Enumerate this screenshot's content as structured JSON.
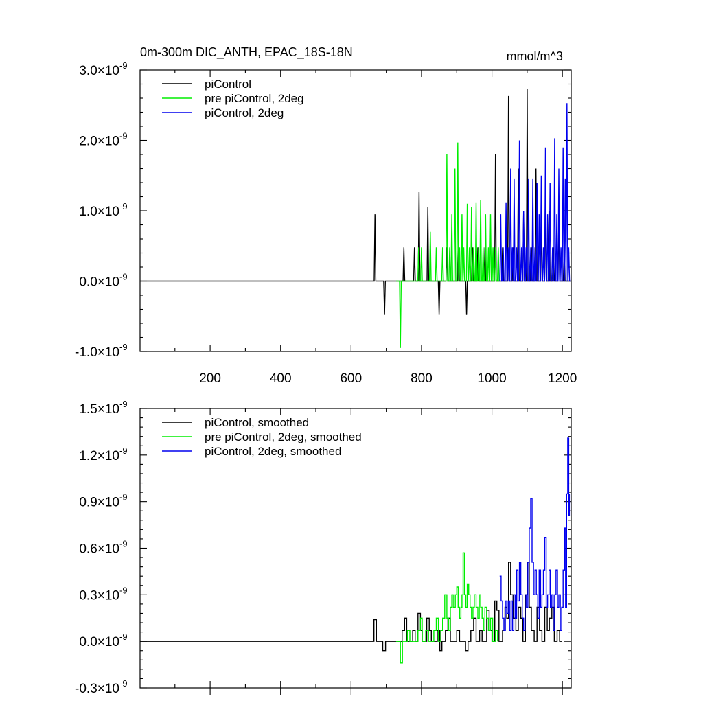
{
  "chart_data": [
    {
      "type": "line",
      "title": "0m-300m DIC_ANTH, EPAC_18S-18N",
      "units": "mmol/m^3",
      "xlabel": "",
      "ylabel": "",
      "xlim": [
        1,
        1225
      ],
      "ylim": [
        -1.0,
        3.0
      ],
      "y_scale_label": "×10⁻⁹",
      "xticks": [
        200,
        400,
        600,
        800,
        1000,
        1200
      ],
      "xtick_labels": [
        "200",
        "400",
        "600",
        "800",
        "1000",
        "1200"
      ],
      "yticks": [
        -1.0,
        0.0,
        1.0,
        2.0,
        3.0
      ],
      "ytick_labels": [
        "-1.0×10",
        "0.0×10",
        "1.0×10",
        "2.0×10",
        "3.0×10"
      ],
      "ytick_exponent": "-9",
      "legend_position": "top-left",
      "series": [
        {
          "name": "piControl",
          "color": "#000000",
          "spikes": [
            [
              668,
              0.95
            ],
            [
              695,
              -0.48
            ],
            [
              750,
              0.48
            ],
            [
              780,
              0.48
            ],
            [
              793,
              1.27
            ],
            [
              818,
              1.05
            ],
            [
              850,
              -0.48
            ],
            [
              872,
              0.48
            ],
            [
              905,
              0.48
            ],
            [
              928,
              -0.48
            ],
            [
              945,
              0.48
            ],
            [
              960,
              0.48
            ],
            [
              980,
              0.48
            ],
            [
              1010,
              1.8
            ],
            [
              1030,
              0.48
            ],
            [
              1047,
              2.63
            ],
            [
              1060,
              0.48
            ],
            [
              1075,
              1.6
            ],
            [
              1090,
              0.95
            ],
            [
              1100,
              2.73
            ],
            [
              1112,
              0.48
            ],
            [
              1125,
              1.6
            ],
            [
              1140,
              0.95
            ],
            [
              1152,
              1.4
            ],
            [
              1162,
              1.0
            ],
            [
              1175,
              0.48
            ],
            [
              1190,
              0.95
            ],
            [
              1205,
              0.48
            ]
          ]
        },
        {
          "name": "pre piControl, 2deg",
          "color": "#00ee00",
          "start": 728,
          "end": 1022,
          "spikes": [
            [
              740,
              -0.95
            ],
            [
              792,
              0.48
            ],
            [
              800,
              0.48
            ],
            [
              825,
              0.7
            ],
            [
              842,
              0.48
            ],
            [
              860,
              0.48
            ],
            [
              872,
              1.8
            ],
            [
              880,
              0.48
            ],
            [
              886,
              0.95
            ],
            [
              895,
              1.6
            ],
            [
              903,
              1.97
            ],
            [
              908,
              0.48
            ],
            [
              915,
              0.95
            ],
            [
              920,
              0.48
            ],
            [
              930,
              1.1
            ],
            [
              936,
              0.48
            ],
            [
              942,
              1.05
            ],
            [
              948,
              0.48
            ],
            [
              955,
              1.12
            ],
            [
              962,
              0.48
            ],
            [
              968,
              1.15
            ],
            [
              975,
              0.48
            ],
            [
              982,
              0.95
            ],
            [
              990,
              0.48
            ],
            [
              996,
              0.95
            ],
            [
              1003,
              0.48
            ],
            [
              1010,
              0.48
            ],
            [
              1018,
              0.48
            ]
          ]
        },
        {
          "name": "piControl, 2deg",
          "color": "#0000ee",
          "start": 1022,
          "end": 1222,
          "spikes": [
            [
              1025,
              0.95
            ],
            [
              1032,
              0.48
            ],
            [
              1040,
              1.12
            ],
            [
              1046,
              0.48
            ],
            [
              1053,
              1.6
            ],
            [
              1058,
              0.48
            ],
            [
              1063,
              1.45
            ],
            [
              1070,
              0.48
            ],
            [
              1078,
              2.0
            ],
            [
              1084,
              0.48
            ],
            [
              1090,
              1.0
            ],
            [
              1097,
              0.48
            ],
            [
              1104,
              1.45
            ],
            [
              1110,
              0.48
            ],
            [
              1116,
              1.45
            ],
            [
              1122,
              0.48
            ],
            [
              1128,
              1.4
            ],
            [
              1134,
              0.95
            ],
            [
              1140,
              1.5
            ],
            [
              1146,
              0.48
            ],
            [
              1152,
              1.9
            ],
            [
              1158,
              0.95
            ],
            [
              1165,
              1.4
            ],
            [
              1172,
              0.48
            ],
            [
              1178,
              2.03
            ],
            [
              1184,
              0.95
            ],
            [
              1190,
              1.6
            ],
            [
              1196,
              0.48
            ],
            [
              1202,
              1.9
            ],
            [
              1208,
              1.45
            ],
            [
              1213,
              2.53
            ],
            [
              1218,
              0.48
            ]
          ]
        }
      ]
    },
    {
      "type": "line",
      "title": "",
      "xlabel": "",
      "ylabel": "",
      "xlim": [
        1,
        1225
      ],
      "ylim": [
        -0.3,
        1.5
      ],
      "y_scale_label": "×10⁻⁹",
      "xticks": [
        200,
        400,
        600,
        800,
        1000,
        1200
      ],
      "yticks": [
        -0.3,
        0.0,
        0.3,
        0.6,
        0.9,
        1.2,
        1.5
      ],
      "ytick_labels": [
        "-0.3×10",
        "0.0×10",
        "0.3×10",
        "0.6×10",
        "0.9×10",
        "1.2×10",
        "1.5×10"
      ],
      "ytick_exponent": "-9",
      "legend_position": "top-left",
      "series": [
        {
          "name": "piControl, smoothed",
          "color": "#000000",
          "steps": [
            [
              1,
              0
            ],
            [
              665,
              0.14
            ],
            [
              672,
              0
            ],
            [
              690,
              -0.06
            ],
            [
              698,
              0
            ],
            [
              745,
              0.07
            ],
            [
              752,
              0.15
            ],
            [
              758,
              0
            ],
            [
              775,
              0.07
            ],
            [
              782,
              0
            ],
            [
              790,
              0.18
            ],
            [
              797,
              0.07
            ],
            [
              802,
              0
            ],
            [
              815,
              0.15
            ],
            [
              822,
              0.07
            ],
            [
              828,
              0
            ],
            [
              845,
              0.07
            ],
            [
              852,
              -0.06
            ],
            [
              858,
              0
            ],
            [
              868,
              0.07
            ],
            [
              875,
              0.15
            ],
            [
              882,
              0
            ],
            [
              900,
              0.07
            ],
            [
              908,
              0
            ],
            [
              925,
              -0.06
            ],
            [
              932,
              0
            ],
            [
              940,
              0.07
            ],
            [
              948,
              0.15
            ],
            [
              955,
              0
            ],
            [
              965,
              0.07
            ],
            [
              972,
              0
            ],
            [
              985,
              0.2
            ],
            [
              992,
              0.07
            ],
            [
              1000,
              0
            ],
            [
              1008,
              0.26
            ],
            [
              1014,
              0.2
            ],
            [
              1020,
              0
            ],
            [
              1030,
              0.07
            ],
            [
              1037,
              0.22
            ],
            [
              1042,
              0.15
            ],
            [
              1047,
              0.51
            ],
            [
              1053,
              0.3
            ],
            [
              1060,
              0.15
            ],
            [
              1068,
              0.07
            ],
            [
              1075,
              0.22
            ],
            [
              1082,
              0.15
            ],
            [
              1088,
              0
            ],
            [
              1095,
              0.3
            ],
            [
              1100,
              0.51
            ],
            [
              1106,
              0.22
            ],
            [
              1112,
              0.07
            ],
            [
              1120,
              0
            ],
            [
              1128,
              0.22
            ],
            [
              1135,
              0.07
            ],
            [
              1142,
              0
            ],
            [
              1150,
              0.22
            ],
            [
              1157,
              0.07
            ],
            [
              1163,
              0.15
            ],
            [
              1170,
              0.22
            ],
            [
              1177,
              0
            ],
            [
              1185,
              0.07
            ],
            [
              1192,
              0
            ],
            [
              1198,
              0
            ]
          ]
        },
        {
          "name": "pre piControl, 2deg, smoothed",
          "color": "#00ee00",
          "steps": [
            [
              728,
              0
            ],
            [
              740,
              -0.14
            ],
            [
              746,
              0
            ],
            [
              760,
              0.07
            ],
            [
              767,
              0
            ],
            [
              790,
              0.07
            ],
            [
              797,
              0.15
            ],
            [
              802,
              0
            ],
            [
              812,
              0.07
            ],
            [
              820,
              0
            ],
            [
              835,
              0.07
            ],
            [
              842,
              0.15
            ],
            [
              848,
              0
            ],
            [
              855,
              0.07
            ],
            [
              860,
              0.15
            ],
            [
              866,
              0.3
            ],
            [
              872,
              0.15
            ],
            [
              877,
              0.07
            ],
            [
              882,
              0.22
            ],
            [
              886,
              0.3
            ],
            [
              890,
              0.22
            ],
            [
              896,
              0.3
            ],
            [
              900,
              0.35
            ],
            [
              904,
              0.22
            ],
            [
              908,
              0.15
            ],
            [
              912,
              0.22
            ],
            [
              915,
              0.3
            ],
            [
              918,
              0.57
            ],
            [
              922,
              0.3
            ],
            [
              926,
              0.22
            ],
            [
              930,
              0.37
            ],
            [
              934,
              0.3
            ],
            [
              938,
              0.22
            ],
            [
              942,
              0.15
            ],
            [
              946,
              0.22
            ],
            [
              950,
              0.3
            ],
            [
              955,
              0.22
            ],
            [
              960,
              0.15
            ],
            [
              964,
              0.3
            ],
            [
              968,
              0.22
            ],
            [
              972,
              0.15
            ],
            [
              976,
              0.07
            ],
            [
              980,
              0.22
            ],
            [
              985,
              0.15
            ],
            [
              990,
              0.07
            ],
            [
              996,
              0.15
            ],
            [
              1002,
              0
            ],
            [
              1010,
              0.07
            ],
            [
              1016,
              0
            ]
          ]
        },
        {
          "name": "piControl, 2deg, smoothed",
          "color": "#0000ee",
          "steps": [
            [
              1022,
              0.42
            ],
            [
              1026,
              0.26
            ],
            [
              1030,
              0.15
            ],
            [
              1034,
              0.07
            ],
            [
              1038,
              0.26
            ],
            [
              1042,
              0.18
            ],
            [
              1046,
              0.26
            ],
            [
              1050,
              0.07
            ],
            [
              1054,
              0.26
            ],
            [
              1058,
              0.07
            ],
            [
              1062,
              0.3
            ],
            [
              1066,
              0.15
            ],
            [
              1070,
              0.46
            ],
            [
              1074,
              0.26
            ],
            [
              1078,
              0.51
            ],
            [
              1082,
              0.3
            ],
            [
              1086,
              0.15
            ],
            [
              1090,
              0.07
            ],
            [
              1094,
              0.3
            ],
            [
              1098,
              0.22
            ],
            [
              1102,
              0.51
            ],
            [
              1106,
              0.73
            ],
            [
              1110,
              0.92
            ],
            [
              1114,
              0.51
            ],
            [
              1118,
              0.3
            ],
            [
              1122,
              0.46
            ],
            [
              1126,
              0.3
            ],
            [
              1130,
              0.15
            ],
            [
              1134,
              0.46
            ],
            [
              1138,
              0.22
            ],
            [
              1142,
              0.3
            ],
            [
              1146,
              0.46
            ],
            [
              1150,
              0.67
            ],
            [
              1154,
              0.22
            ],
            [
              1158,
              0.3
            ],
            [
              1162,
              0.46
            ],
            [
              1166,
              0.22
            ],
            [
              1170,
              0.3
            ],
            [
              1174,
              0.07
            ],
            [
              1178,
              0.3
            ],
            [
              1182,
              0.46
            ],
            [
              1186,
              0.22
            ],
            [
              1190,
              0.3
            ],
            [
              1194,
              0.07
            ],
            [
              1198,
              0.22
            ],
            [
              1202,
              0.46
            ],
            [
              1206,
              0.73
            ],
            [
              1209,
              0.22
            ],
            [
              1212,
              0.95
            ],
            [
              1215,
              1.31
            ],
            [
              1218,
              0.81
            ],
            [
              1220,
              0.95
            ]
          ]
        }
      ]
    }
  ]
}
